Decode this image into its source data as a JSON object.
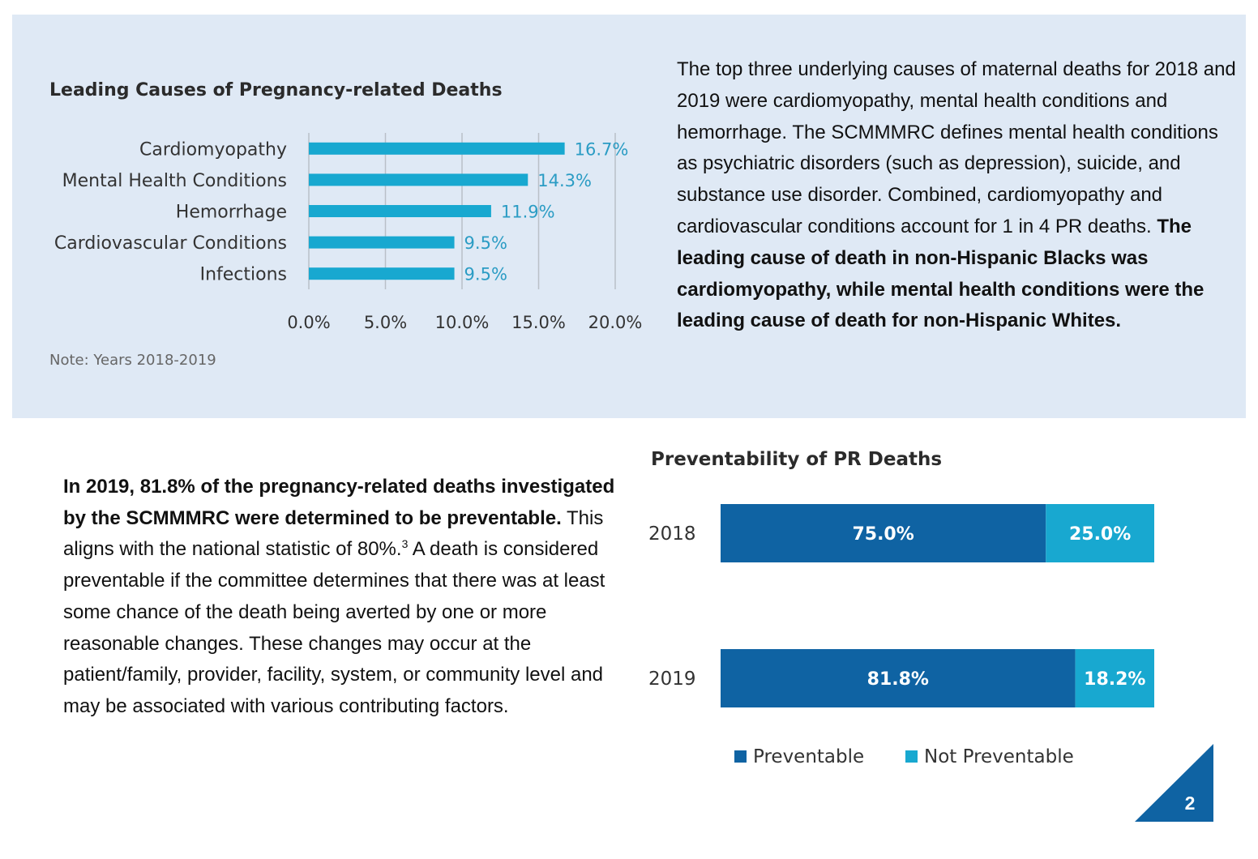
{
  "colors": {
    "panel_bg": "#dfe9f5",
    "bar_light": "#18a8d0",
    "label_light": "#2b9cc4",
    "preventable": "#0f63a3",
    "not_preventable": "#18a8d0",
    "corner": "#0f63a3"
  },
  "chart_data": [
    {
      "type": "bar",
      "orientation": "horizontal",
      "title": "Leading Causes of Pregnancy-related Deaths",
      "categories": [
        "Cardiomyopathy",
        "Mental Health Conditions",
        "Hemorrhage",
        "Cardiovascular Conditions",
        "Infections"
      ],
      "values": [
        16.7,
        14.3,
        11.9,
        9.5,
        9.5
      ],
      "value_labels": [
        "16.7%",
        "14.3%",
        "11.9%",
        "9.5%",
        "9.5%"
      ],
      "xticks": [
        "0.0%",
        "5.0%",
        "10.0%",
        "15.0%",
        "20.0%"
      ],
      "xlim": [
        0,
        20
      ],
      "grid": true,
      "note": "Note: Years 2018-2019"
    },
    {
      "type": "bar",
      "orientation": "horizontal",
      "stacked": true,
      "title": "Preventability of PR Deaths",
      "categories": [
        "2018",
        "2019"
      ],
      "series": [
        {
          "name": "Preventable",
          "values": [
            75.0,
            81.8
          ],
          "labels": [
            "75.0%",
            "81.8%"
          ]
        },
        {
          "name": "Not Preventable",
          "values": [
            25.0,
            18.2
          ],
          "labels": [
            "25.0%",
            "18.2%"
          ]
        }
      ],
      "xlim": [
        0,
        100
      ],
      "legend_position": "bottom"
    }
  ],
  "text": {
    "top_paragraph_plain": "The top three underlying causes of maternal deaths for 2018 and 2019 were cardiomyopathy, mental health conditions and hemorrhage. The SCMMMRC defines mental health conditions as psychiatric disorders (such as depression), suicide, and substance use disorder. Combined, cardiomyopathy and cardiovascular conditions account for 1 in 4 PR deaths. ",
    "top_paragraph_bold": "The leading cause of death in non-Hispanic Blacks was cardiomyopathy, while mental health conditions were the leading cause of death for non-Hispanic Whites.",
    "bottom_paragraph_bold": "In 2019, 81.8% of the pregnancy-related deaths investigated by the SCMMMRC were determined to be preventable.",
    "bottom_paragraph_plain_1": " This aligns with the national statistic of 80%.",
    "bottom_paragraph_sup": "3",
    "bottom_paragraph_plain_2": " A death is considered preventable if the committee determines that there was at least some chance of the death being averted by one or more reasonable changes.  These changes may occur at the patient/family, provider, facility, system, or community level and may be associated with various contributing factors."
  },
  "page_number": "2"
}
